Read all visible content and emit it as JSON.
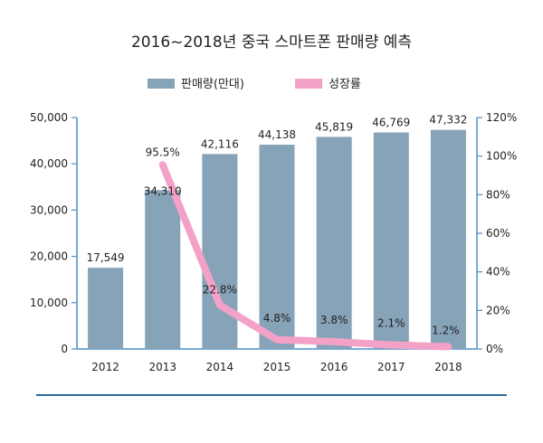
{
  "chart_data": {
    "type": "bar+line",
    "title": "2016~2018년 중국 스마트폰 판매량 예측",
    "categories": [
      "2012",
      "2013",
      "2014",
      "2015",
      "2016",
      "2017",
      "2018"
    ],
    "series": [
      {
        "name": "판매량(만대)",
        "type": "bar",
        "axis": "left",
        "values": [
          17549,
          34310,
          42116,
          44138,
          45819,
          46769,
          47332
        ],
        "labels": [
          "17,549",
          "34,310",
          "42,116",
          "44,138",
          "45,819",
          "46,769",
          "47,332"
        ],
        "color": "#87a3b8"
      },
      {
        "name": "성장률",
        "type": "line",
        "axis": "right",
        "x": [
          "2013",
          "2014",
          "2015",
          "2016",
          "2017",
          "2018"
        ],
        "values": [
          95.5,
          22.8,
          4.8,
          3.8,
          2.1,
          1.2
        ],
        "labels": [
          "95.5%",
          "22.8%",
          "4.8%",
          "3.8%",
          "2.1%",
          "1.2%"
        ],
        "color": "#f4a1c8"
      }
    ],
    "y_left": {
      "range": [
        0,
        50000
      ],
      "ticks": [
        0,
        10000,
        20000,
        30000,
        40000,
        50000
      ],
      "tick_labels": [
        "0",
        "10,000",
        "20,000",
        "30,000",
        "40,000",
        "50,000"
      ]
    },
    "y_right": {
      "range": [
        0,
        120
      ],
      "ticks": [
        0,
        20,
        40,
        60,
        80,
        100,
        120
      ],
      "tick_labels": [
        "0%",
        "20%",
        "40%",
        "60%",
        "80%",
        "100%",
        "120%"
      ]
    },
    "legend_position": "top",
    "grid": false,
    "axis_color": "#4a90c8",
    "rule_color": "#2b6a9c"
  }
}
